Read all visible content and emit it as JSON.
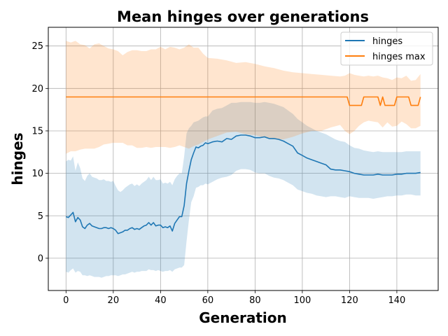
{
  "chart_data": {
    "type": "line",
    "title": "Mean hinges over generations",
    "xlabel": "Generation",
    "ylabel": "hinges",
    "xlim": [
      -7.5,
      157.5
    ],
    "ylim": [
      -3.8,
      27.2
    ],
    "xticks": [
      0,
      20,
      40,
      60,
      80,
      100,
      120,
      140
    ],
    "yticks": [
      0,
      5,
      10,
      15,
      20,
      25
    ],
    "grid": true,
    "legend_position": "top-right",
    "series": [
      {
        "name": "hinges",
        "color": "#1f77b4",
        "band_color": "#1f77b4",
        "band_opacity": 0.2,
        "x": [
          0,
          1,
          2,
          3,
          4,
          5,
          6,
          7,
          8,
          9,
          10,
          11,
          12,
          13,
          14,
          15,
          16,
          17,
          18,
          19,
          20,
          21,
          22,
          23,
          24,
          25,
          26,
          27,
          28,
          29,
          30,
          31,
          32,
          33,
          34,
          35,
          36,
          37,
          38,
          39,
          40,
          41,
          42,
          43,
          44,
          45,
          46,
          47,
          48,
          49,
          50,
          51,
          52,
          53,
          54,
          55,
          56,
          57,
          58,
          59,
          60,
          62,
          64,
          66,
          68,
          70,
          72,
          74,
          76,
          78,
          80,
          82,
          84,
          86,
          88,
          90,
          92,
          94,
          96,
          98,
          100,
          102,
          104,
          106,
          108,
          110,
          112,
          114,
          116,
          118,
          120,
          122,
          124,
          126,
          128,
          130,
          132,
          134,
          136,
          138,
          140,
          142,
          144,
          146,
          148,
          150
        ],
        "values": [
          4.9,
          4.8,
          5.1,
          5.4,
          4.3,
          4.8,
          4.5,
          3.7,
          3.5,
          3.9,
          4.1,
          3.8,
          3.7,
          3.6,
          3.5,
          3.5,
          3.6,
          3.6,
          3.5,
          3.6,
          3.5,
          3.3,
          2.9,
          3.0,
          3.1,
          3.3,
          3.3,
          3.5,
          3.6,
          3.4,
          3.5,
          3.4,
          3.6,
          3.8,
          3.9,
          4.2,
          3.9,
          4.2,
          3.8,
          3.9,
          3.9,
          3.6,
          3.7,
          3.6,
          3.8,
          3.2,
          4.1,
          4.5,
          4.9,
          4.9,
          6.2,
          8.8,
          10.3,
          11.6,
          12.4,
          13.1,
          13.0,
          13.2,
          13.3,
          13.6,
          13.5,
          13.7,
          13.8,
          13.7,
          14.1,
          14.0,
          14.4,
          14.5,
          14.5,
          14.4,
          14.2,
          14.2,
          14.3,
          14.1,
          14.1,
          14.0,
          13.8,
          13.5,
          13.2,
          12.4,
          12.1,
          11.8,
          11.6,
          11.4,
          11.2,
          11.0,
          10.5,
          10.4,
          10.4,
          10.3,
          10.2,
          10.0,
          9.9,
          9.8,
          9.8,
          9.8,
          9.9,
          9.8,
          9.8,
          9.8,
          9.9,
          9.9,
          10.0,
          10.0,
          10.0,
          10.1
        ],
        "band_low": [
          -1.6,
          -1.7,
          -1.4,
          -1.2,
          -1.7,
          -1.5,
          -1.6,
          -2.0,
          -2.0,
          -2.1,
          -2.0,
          -2.1,
          -2.2,
          -2.2,
          -2.2,
          -2.3,
          -2.2,
          -2.1,
          -2.1,
          -2.0,
          -2.0,
          -2.0,
          -2.1,
          -2.0,
          -1.9,
          -1.9,
          -1.8,
          -1.7,
          -1.6,
          -1.7,
          -1.6,
          -1.6,
          -1.5,
          -1.5,
          -1.5,
          -1.3,
          -1.4,
          -1.4,
          -1.5,
          -1.4,
          -1.5,
          -1.6,
          -1.5,
          -1.5,
          -1.4,
          -1.6,
          -1.3,
          -1.2,
          -1.1,
          -1.1,
          -0.8,
          2.0,
          4.5,
          6.6,
          7.3,
          8.3,
          8.4,
          8.6,
          8.6,
          8.8,
          8.7,
          9.0,
          9.3,
          9.5,
          9.6,
          9.8,
          10.3,
          10.5,
          10.5,
          10.4,
          10.1,
          10.0,
          10.0,
          9.7,
          9.5,
          9.4,
          9.2,
          8.9,
          8.6,
          8.1,
          7.9,
          7.7,
          7.6,
          7.4,
          7.3,
          7.2,
          7.3,
          7.3,
          7.2,
          7.1,
          7.3,
          7.2,
          7.1,
          7.1,
          7.1,
          7.0,
          7.1,
          7.2,
          7.3,
          7.3,
          7.4,
          7.4,
          7.5,
          7.5,
          7.4,
          7.4
        ],
        "band_high": [
          11.4,
          11.6,
          11.5,
          12.0,
          10.3,
          11.3,
          10.6,
          9.4,
          9.1,
          9.7,
          10.0,
          9.6,
          9.5,
          9.4,
          9.2,
          9.2,
          9.3,
          9.1,
          9.1,
          9.0,
          9.1,
          8.5,
          8.0,
          7.8,
          8.0,
          8.3,
          8.5,
          8.7,
          8.8,
          8.5,
          8.7,
          8.5,
          8.8,
          9.0,
          9.2,
          9.6,
          9.2,
          9.6,
          9.2,
          9.2,
          9.3,
          8.8,
          8.9,
          8.8,
          9.0,
          8.6,
          9.3,
          9.7,
          10.0,
          10.0,
          12.0,
          14.7,
          15.3,
          15.6,
          16.0,
          16.1,
          16.2,
          16.4,
          16.6,
          16.7,
          16.7,
          17.4,
          17.6,
          17.7,
          18.0,
          18.3,
          18.3,
          18.4,
          18.4,
          18.4,
          18.3,
          18.3,
          18.4,
          18.3,
          18.2,
          18.0,
          17.8,
          17.4,
          17.0,
          16.4,
          16.0,
          15.6,
          15.3,
          15.0,
          14.8,
          14.6,
          14.3,
          14.0,
          13.8,
          13.7,
          13.3,
          13.0,
          12.9,
          12.7,
          12.6,
          12.5,
          12.6,
          12.5,
          12.5,
          12.5,
          12.5,
          12.5,
          12.6,
          12.6,
          12.6,
          12.6
        ]
      },
      {
        "name": "hinges max",
        "color": "#ff7f0e",
        "band_color": "#ff7f0e",
        "band_opacity": 0.2,
        "x": [
          0,
          20,
          40,
          60,
          80,
          100,
          119,
          120,
          121,
          124,
          125,
          126,
          127,
          132,
          133,
          134,
          135,
          136,
          137,
          139,
          140,
          141,
          143,
          145,
          146,
          147,
          149,
          150
        ],
        "values": [
          19,
          19,
          19,
          19,
          19,
          19,
          19,
          18,
          18,
          18,
          18,
          19,
          19,
          19,
          18,
          19,
          18,
          18,
          18,
          18,
          19,
          19,
          19,
          19,
          18,
          18,
          18,
          19
        ],
        "band_x": [
          0,
          2,
          4,
          6,
          8,
          10,
          12,
          14,
          16,
          18,
          20,
          22,
          24,
          26,
          28,
          30,
          32,
          34,
          36,
          38,
          40,
          42,
          44,
          46,
          48,
          50,
          52,
          54,
          56,
          58,
          60,
          64,
          68,
          72,
          76,
          80,
          84,
          88,
          92,
          96,
          100,
          104,
          108,
          112,
          116,
          118,
          120,
          122,
          124,
          126,
          128,
          130,
          132,
          134,
          136,
          138,
          140,
          142,
          144,
          146,
          148,
          150
        ],
        "band_low": [
          12.3,
          12.6,
          12.6,
          12.8,
          12.9,
          12.9,
          12.9,
          13.1,
          13.4,
          13.5,
          13.6,
          13.6,
          13.6,
          13.3,
          13.3,
          13.0,
          13.0,
          13.1,
          13.0,
          13.1,
          13.1,
          13.1,
          13.0,
          13.1,
          13.3,
          13.1,
          12.9,
          13.2,
          13.4,
          13.7,
          14.0,
          14.4,
          14.8,
          14.9,
          14.6,
          14.5,
          14.2,
          14.0,
          14.0,
          14.3,
          14.7,
          15.0,
          15.0,
          15.4,
          15.7,
          15.0,
          14.6,
          15.0,
          15.6,
          16.0,
          16.2,
          16.1,
          16.0,
          15.4,
          16.0,
          15.5,
          15.6,
          16.1,
          15.8,
          15.3,
          15.3,
          15.6
        ],
        "band_high": [
          25.6,
          25.4,
          25.6,
          25.2,
          25.1,
          24.7,
          25.2,
          25.3,
          25.0,
          24.7,
          24.6,
          24.4,
          23.9,
          24.3,
          24.5,
          24.5,
          24.4,
          24.4,
          24.6,
          24.6,
          24.9,
          24.6,
          24.9,
          24.8,
          24.6,
          24.8,
          25.2,
          24.8,
          24.8,
          24.1,
          23.6,
          23.5,
          23.3,
          23.0,
          23.1,
          22.9,
          22.6,
          22.4,
          22.1,
          21.9,
          21.8,
          21.7,
          21.6,
          21.5,
          21.4,
          21.5,
          21.8,
          21.6,
          21.5,
          21.4,
          21.5,
          21.4,
          21.5,
          21.3,
          21.2,
          21.0,
          21.3,
          21.2,
          21.5,
          20.9,
          21.0,
          21.7
        ]
      }
    ]
  }
}
